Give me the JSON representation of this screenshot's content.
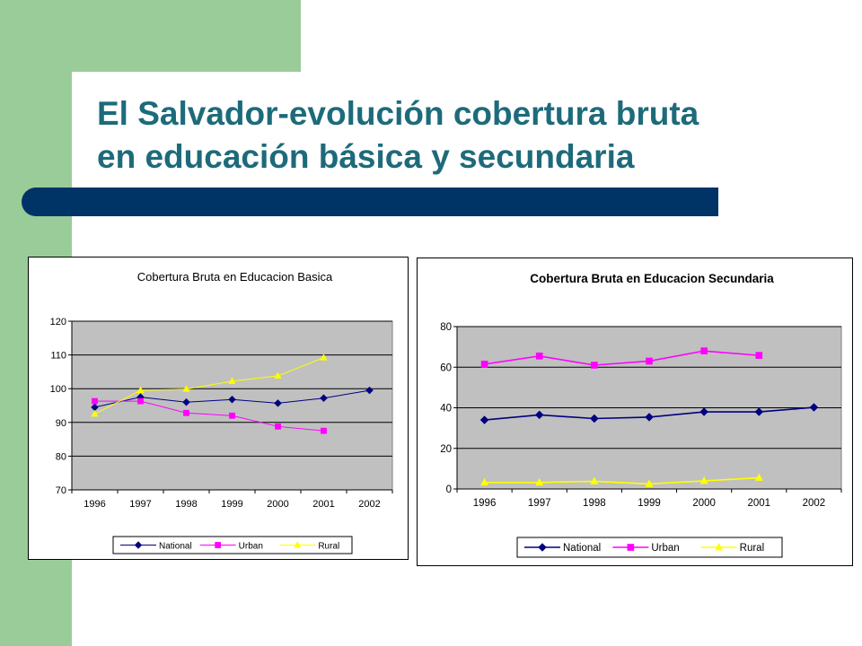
{
  "slide": {
    "title_line1": "El Salvador-evolución cobertura bruta",
    "title_line2": "en educación básica y secundaria"
  },
  "colors": {
    "green_band": "#99cc99",
    "title_text": "#1d6b7a",
    "accent_bar": "#003366",
    "plot_area": "#c0c0c0"
  },
  "chart_data": [
    {
      "type": "line",
      "title": "Cobertura Bruta en Educacion Basica",
      "categories": [
        "1996",
        "1997",
        "1998",
        "1999",
        "2000",
        "2001",
        "2002"
      ],
      "series": [
        {
          "name": "National",
          "color": "#000080",
          "marker": "diamond",
          "values": [
            94.5,
            97.5,
            96,
            96.8,
            95.7,
            97.2,
            99.5
          ]
        },
        {
          "name": "Urban",
          "color": "#ff00ff",
          "marker": "square",
          "values": [
            96.3,
            96.3,
            92.8,
            92,
            88.8,
            87.5,
            null
          ]
        },
        {
          "name": "Rural",
          "color": "#ffff00",
          "marker": "triangle",
          "values": [
            92.5,
            99.5,
            99.9,
            102.2,
            103.8,
            109.2,
            null
          ]
        }
      ],
      "ylim": [
        70,
        120
      ],
      "yticks": [
        70,
        80,
        90,
        100,
        110,
        120
      ],
      "grid": true,
      "legend": "bottom"
    },
    {
      "type": "line",
      "title": "Cobertura Bruta en Educacion Secundaria",
      "categories": [
        "1996",
        "1997",
        "1998",
        "1999",
        "2000",
        "2001",
        "2002"
      ],
      "series": [
        {
          "name": "National",
          "color": "#000080",
          "marker": "diamond",
          "values": [
            34,
            36.5,
            34.7,
            35.4,
            38,
            38,
            40.2
          ]
        },
        {
          "name": "Urban",
          "color": "#ff00ff",
          "marker": "square",
          "values": [
            61.5,
            65.5,
            61,
            63,
            68,
            65.8,
            null
          ]
        },
        {
          "name": "Rural",
          "color": "#ffff00",
          "marker": "triangle",
          "values": [
            3.2,
            3.2,
            3.8,
            2.5,
            4,
            5.5,
            null
          ]
        }
      ],
      "ylim": [
        0,
        80
      ],
      "yticks": [
        0,
        20,
        40,
        60,
        80
      ],
      "grid": true,
      "legend": "bottom"
    }
  ]
}
